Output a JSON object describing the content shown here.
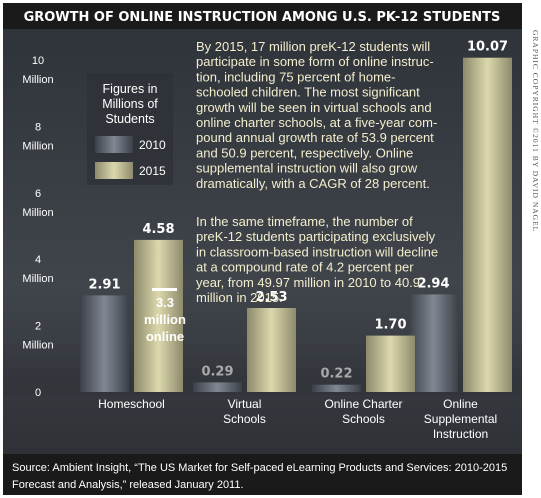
{
  "header": {
    "title": "GROWTH OF ONLINE INSTRUCTION AMONG U.S. PK-12 STUDENTS"
  },
  "colors": {
    "background": "#3b3f46",
    "bar_2010": "#6f7680",
    "bar_2015": "#d7d3a8",
    "note_text": "#f3eecd"
  },
  "legend": {
    "title_lines": [
      "Figures in",
      "Millions of",
      "Students"
    ],
    "items": [
      {
        "label": "2010",
        "color": "#6f7680"
      },
      {
        "label": "2015",
        "color": "#d7d3a8"
      }
    ]
  },
  "notes": {
    "paragraph1": [
      "By 2015, 17 million preK-12 students will",
      "participate in some form of online instruc-",
      "tion, including 75 percent of home-",
      "schooled children. The most significant",
      "growth will be seen in virtual schools and",
      "online charter schools, at a five-year com-",
      "pound annual growth rate of 53.9 percent",
      "and 50.9 percent, respectively. Online",
      "supplemental instruction will also grow",
      "dramatically, with a CAGR of 28 percent."
    ],
    "paragraph2": [
      "In the same timeframe, the number of",
      "preK-12 students participating exclusively",
      "in classroom-based instruction will decline",
      "at a compound rate of 4.2 percent per",
      "year, from 49.97 million in 2010 to 40.9",
      "million in 2015."
    ]
  },
  "annotation": {
    "lines": [
      "3.3",
      "million",
      "online"
    ],
    "value": 3.3
  },
  "credit": "GRAPHIC COPYRIGHT ©2011 BY DAVID NAGEL",
  "source": {
    "line1": "Source:  Ambient Insight, “The US Market for Self-paced eLearning Products and Services: 2010-2015",
    "line2": "Forecast and Analysis,” released January 2011."
  },
  "chart_data": {
    "type": "bar",
    "title": "GROWTH OF ONLINE INSTRUCTION AMONG U.S. PK-12 STUDENTS",
    "categories": [
      [
        "Homeschool"
      ],
      [
        "Virtual",
        "Schools"
      ],
      [
        "Online Charter",
        "Schools"
      ],
      [
        "Online",
        "Supplemental",
        "Instruction"
      ]
    ],
    "series": [
      {
        "name": "2010",
        "values": [
          2.91,
          0.29,
          0.22,
          2.94
        ],
        "labels": [
          "2.91",
          "0.29",
          "0.22",
          "2.94"
        ]
      },
      {
        "name": "2015",
        "values": [
          4.58,
          2.53,
          1.7,
          10.07
        ],
        "labels": [
          "4.58",
          "2.53",
          "1.70",
          "10.07"
        ]
      }
    ],
    "ylim": [
      0,
      10
    ],
    "yticks": [
      {
        "value": 0,
        "lines": [
          "0"
        ]
      },
      {
        "value": 2,
        "lines": [
          "2",
          "Million"
        ]
      },
      {
        "value": 4,
        "lines": [
          "4",
          "Million"
        ]
      },
      {
        "value": 6,
        "lines": [
          "6",
          "Million"
        ]
      },
      {
        "value": 8,
        "lines": [
          "8",
          "Million"
        ]
      },
      {
        "value": 10,
        "lines": [
          "10",
          "Million"
        ]
      }
    ],
    "ylabel": "",
    "xlabel": "",
    "grid": false,
    "legend_position": "left, inside plot area"
  }
}
